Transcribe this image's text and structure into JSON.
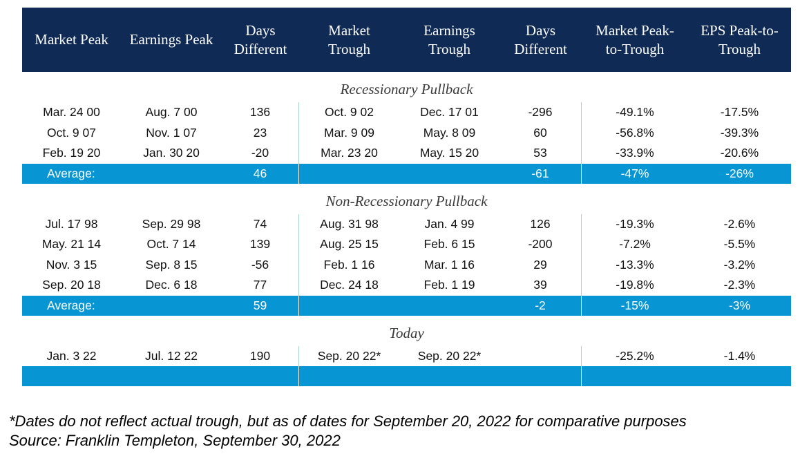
{
  "headers": [
    "Market Peak",
    "Earnings Peak",
    "Days Different",
    "Market Trough",
    "Earnings Trough",
    "Days Different",
    "Market Peak-to-Trough",
    "EPS Peak-to-Trough"
  ],
  "sections": [
    {
      "title": "Recessionary Pullback",
      "rows": [
        [
          "Mar. 24 00",
          "Aug. 7 00",
          "136",
          "Oct. 9 02",
          "Dec. 17 01",
          "-296",
          "-49.1%",
          "-17.5%"
        ],
        [
          "Oct. 9 07",
          "Nov. 1 07",
          "23",
          "Mar. 9 09",
          "May. 8 09",
          "60",
          "-56.8%",
          "-39.3%"
        ],
        [
          "Feb. 19 20",
          "Jan. 30 20",
          "-20",
          "Mar. 23 20",
          "May. 15 20",
          "53",
          "-33.9%",
          "-20.6%"
        ]
      ],
      "average": {
        "label": "Average:",
        "days_diff_1": "46",
        "days_diff_2": "-61",
        "market_ptt": "-47%",
        "eps_ptt": "-26%"
      }
    },
    {
      "title": "Non-Recessionary Pullback",
      "rows": [
        [
          "Jul. 17 98",
          "Sep. 29 98",
          "74",
          "Aug. 31 98",
          "Jan. 4 99",
          "126",
          "-19.3%",
          "-2.6%"
        ],
        [
          "May. 21 14",
          "Oct. 7 14",
          "139",
          "Aug. 25 15",
          "Feb. 6 15",
          "-200",
          "-7.2%",
          "-5.5%"
        ],
        [
          "Nov. 3 15",
          "Sep. 8 15",
          "-56",
          "Feb. 1 16",
          "Mar. 1 16",
          "29",
          "-13.3%",
          "-3.2%"
        ],
        [
          "Sep. 20 18",
          "Dec. 6 18",
          "77",
          "Dec. 24 18",
          "Feb. 1 19",
          "39",
          "-19.8%",
          "-2.3%"
        ]
      ],
      "average": {
        "label": "Average:",
        "days_diff_1": "59",
        "days_diff_2": "-2",
        "market_ptt": "-15%",
        "eps_ptt": "-3%"
      }
    },
    {
      "title": "Today",
      "rows": [
        [
          "Jan. 3 22",
          "Jul. 12 22",
          "190",
          "Sep. 20 22*",
          "Sep. 20 22*",
          "",
          "-25.2%",
          "-1.4%"
        ]
      ],
      "average": {
        "label": "",
        "days_diff_1": "",
        "days_diff_2": "",
        "market_ptt": "",
        "eps_ptt": ""
      }
    }
  ],
  "footnote": {
    "line1": "*Dates do not reflect actual trough, but as of dates for September 20, 2022 for comparative purposes",
    "line2": "Source: Franklin Templeton, September 30, 2022"
  },
  "colors": {
    "header_bg": "#0f2a55",
    "average_bg": "#0895d3",
    "divider": "#a9d3c3"
  }
}
